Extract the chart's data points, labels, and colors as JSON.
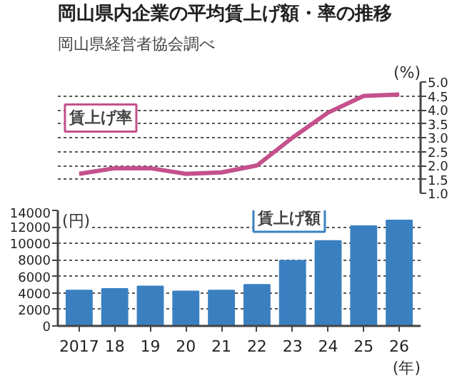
{
  "chart_data": [
    {
      "type": "line",
      "title": "岡山県内企業の平均賃上げ額・率の推移",
      "subtitle": "岡山県経営者協会調べ",
      "ylabel": "(%)",
      "categories": [
        "2017",
        "18",
        "19",
        "20",
        "21",
        "22",
        "23",
        "24",
        "25",
        "26"
      ],
      "series": [
        {
          "name": "賃上げ率",
          "color": "#c4508c",
          "values": [
            1.7,
            1.9,
            1.9,
            1.7,
            1.75,
            2.0,
            3.0,
            3.9,
            4.5,
            4.55
          ]
        }
      ],
      "ylim": [
        1.0,
        5.0
      ],
      "yticks": [
        {
          "value": 1,
          "label": "1.0"
        },
        1.5,
        {
          "value": 2,
          "label": "2.0"
        },
        2.5,
        {
          "value": 3,
          "label": "3.0"
        },
        3.5,
        {
          "value": 4,
          "label": "4.0"
        },
        4.5,
        {
          "value": 5,
          "label": "5.0"
        }
      ],
      "grid": "y",
      "tick_labels": "y",
      "marker": "none",
      "line_style": "solid"
    },
    {
      "type": "bar",
      "ylabel": "(円)",
      "xlabel": "(年)",
      "categories": [
        "2017",
        "18",
        "19",
        "20",
        "21",
        "22",
        "23",
        "24",
        "25",
        "26"
      ],
      "series": [
        {
          "name": "賃上げ額",
          "color": "#3a80c0",
          "values": [
            4300,
            4500,
            4800,
            4200,
            4300,
            5000,
            7900,
            10300,
            12100,
            12800
          ]
        }
      ],
      "ylim": [
        0,
        14000
      ],
      "yticks": [
        0,
        2000,
        4000,
        6000,
        8000,
        10000,
        12000,
        14000
      ],
      "grid": "y"
    }
  ]
}
